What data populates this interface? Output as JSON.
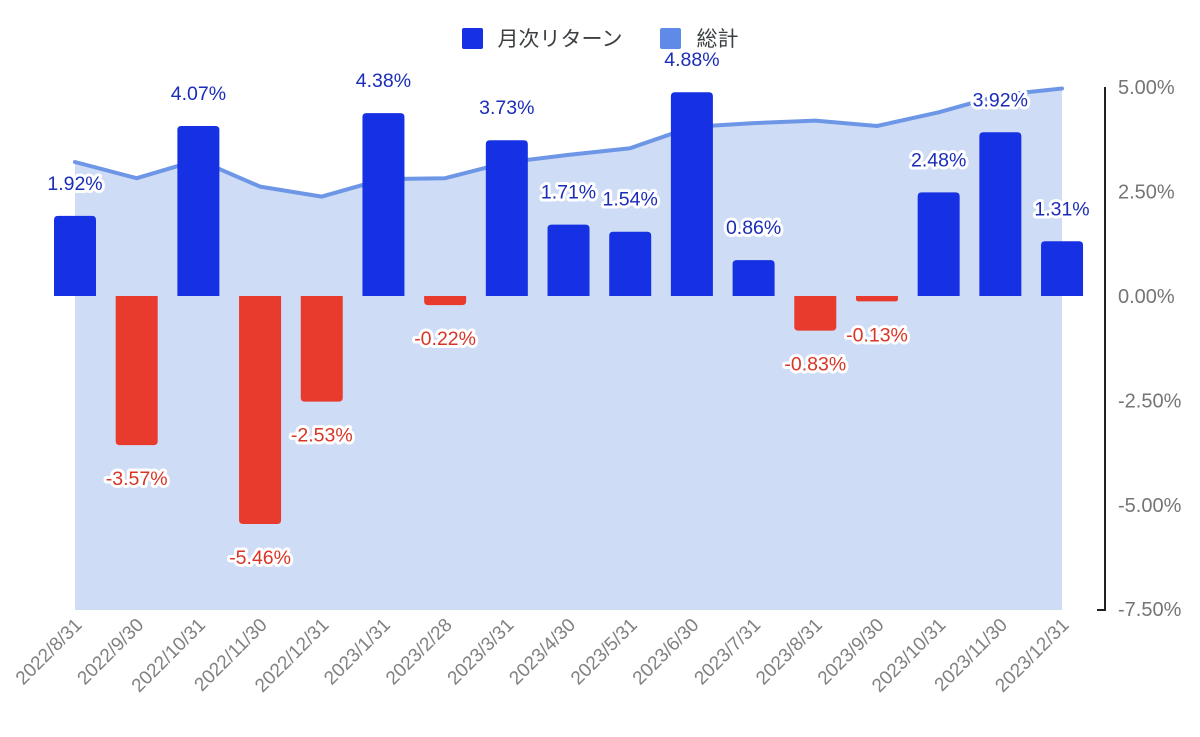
{
  "chart_data": {
    "type": "combo",
    "title": "",
    "categories": [
      "2022/8/31",
      "2022/9/30",
      "2022/10/31",
      "2022/11/30",
      "2022/12/31",
      "2023/1/31",
      "2023/2/28",
      "2023/3/31",
      "2023/4/30",
      "2023/5/31",
      "2023/6/30",
      "2023/7/31",
      "2023/8/31",
      "2023/9/30",
      "2023/10/31",
      "2023/11/30",
      "2023/12/31"
    ],
    "series": [
      {
        "name": "月次リターン",
        "type": "bar",
        "values": [
          1.92,
          -3.57,
          4.07,
          -5.46,
          -2.53,
          4.38,
          -0.22,
          3.73,
          1.71,
          1.54,
          4.88,
          0.86,
          -0.83,
          -0.13,
          2.48,
          3.92,
          1.31
        ],
        "data_labels": [
          "1.92%",
          "-3.57%",
          "4.07%",
          "-5.46%",
          "-2.53%",
          "4.38%",
          "-0.22%",
          "3.73%",
          "1.71%",
          "1.54%",
          "4.88%",
          "0.86%",
          "-0.83%",
          "-0.13%",
          "2.48%",
          "3.92%",
          "1.31%"
        ],
        "color": "#1631e4",
        "negative_color": "#e83b2d",
        "label_color_positive": "#1b2db8",
        "label_color_negative": "#d93526"
      },
      {
        "name": "総計",
        "type": "area",
        "values": [
          3.21,
          2.82,
          3.26,
          2.62,
          2.38,
          2.8,
          2.82,
          3.2,
          3.38,
          3.54,
          4.05,
          4.14,
          4.2,
          4.07,
          4.4,
          4.81,
          4.97
        ],
        "color": "#5f8ae8",
        "line_color": "#6e96e6",
        "fill_color": "#cfdcf5"
      }
    ],
    "y_axis": {
      "position": "right",
      "ticks": [
        "5.00%",
        "2.50%",
        "0.00%",
        "-2.50%",
        "-5.00%",
        "-7.50%"
      ],
      "tick_values": [
        5,
        2.5,
        0,
        -2.5,
        -5,
        -7.5
      ],
      "range": [
        -7.5,
        5
      ],
      "tick_color": "#757575",
      "axis_line_color": "#212121"
    },
    "x_axis": {
      "label_rotation": -45,
      "label_color": "#818181"
    },
    "grid": false,
    "legend_position": "top"
  }
}
